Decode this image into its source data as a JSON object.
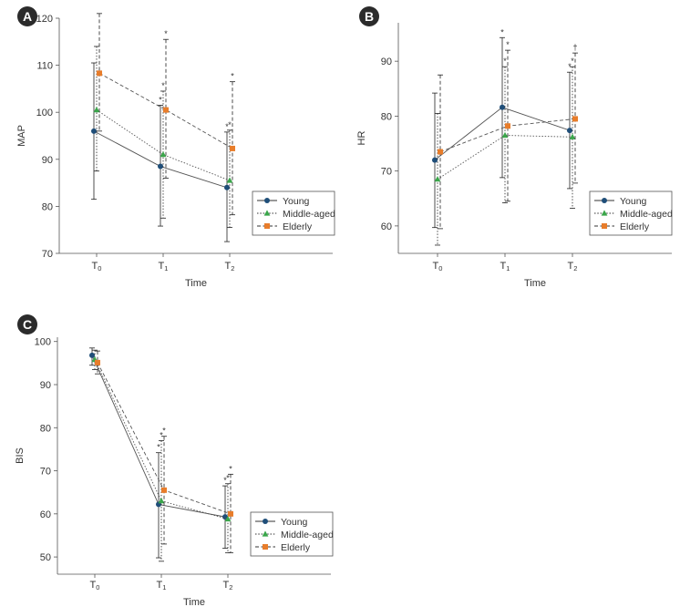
{
  "chart_data": [
    {
      "id": "A",
      "type": "line",
      "panel_label": "A",
      "xlabel": "Time",
      "ylabel": "MAP",
      "categories": [
        {
          "base": "T",
          "sub": "0"
        },
        {
          "base": "T",
          "sub": "1"
        },
        {
          "base": "T",
          "sub": "2"
        }
      ],
      "ylim": [
        70,
        120
      ],
      "yticks": [
        70,
        80,
        90,
        100,
        110,
        120
      ],
      "legend_position": "right",
      "series": [
        {
          "name": "Young",
          "marker": "circle",
          "dash": "solid",
          "color": "#1f4e79",
          "values": [
            96,
            88.5,
            84
          ],
          "upper": [
            110.5,
            101.5,
            95.8
          ],
          "lower": [
            81.5,
            75.8,
            72.5
          ],
          "star": [
            "",
            "*",
            "*"
          ]
        },
        {
          "name": "Middle-aged",
          "marker": "triangle",
          "dash": "dotted",
          "color": "#3aa64a",
          "values": [
            100.5,
            91,
            85.5
          ],
          "upper": [
            114,
            104.5,
            96.2
          ],
          "lower": [
            87.5,
            77.5,
            75.5
          ],
          "star": [
            "",
            "*",
            "*"
          ]
        },
        {
          "name": "Elderly",
          "marker": "square",
          "dash": "dashed",
          "color": "#e87d2b",
          "values": [
            108.3,
            100.5,
            92.3
          ],
          "upper": [
            121,
            115.5,
            106.5
          ],
          "lower": [
            96,
            86,
            78.2
          ],
          "star": [
            "",
            "*",
            "*"
          ]
        }
      ]
    },
    {
      "id": "B",
      "type": "line",
      "panel_label": "B",
      "xlabel": "Time",
      "ylabel": "HR",
      "categories": [
        {
          "base": "T",
          "sub": "0"
        },
        {
          "base": "T",
          "sub": "1"
        },
        {
          "base": "T",
          "sub": "2"
        }
      ],
      "ylim": [
        55,
        97
      ],
      "yticks": [
        60,
        70,
        80,
        90
      ],
      "legend_position": "right",
      "series": [
        {
          "name": "Young",
          "marker": "circle",
          "dash": "solid",
          "color": "#1f4e79",
          "values": [
            72,
            81.6,
            77.4
          ],
          "upper": [
            84.2,
            94.3,
            88
          ],
          "lower": [
            59.7,
            68.8,
            66.8
          ],
          "star": [
            "",
            "*",
            "*"
          ]
        },
        {
          "name": "Middle-aged",
          "marker": "triangle",
          "dash": "dotted",
          "color": "#3aa64a",
          "values": [
            68.5,
            76.5,
            76.2
          ],
          "upper": [
            80.5,
            89,
            89
          ],
          "lower": [
            56.5,
            64.2,
            63.2
          ],
          "star": [
            "",
            "*",
            "*"
          ]
        },
        {
          "name": "Elderly",
          "marker": "square",
          "dash": "dashed",
          "color": "#e87d2b",
          "values": [
            73.5,
            78.2,
            79.5
          ],
          "upper": [
            87.5,
            92,
            91.5
          ],
          "lower": [
            59.5,
            64.5,
            67.8
          ],
          "star": [
            "",
            "*",
            "†"
          ]
        }
      ]
    },
    {
      "id": "C",
      "type": "line",
      "panel_label": "C",
      "xlabel": "Time",
      "ylabel": "BIS",
      "categories": [
        {
          "base": "T",
          "sub": "0"
        },
        {
          "base": "T",
          "sub": "1"
        },
        {
          "base": "T",
          "sub": "2"
        }
      ],
      "ylim": [
        46,
        101
      ],
      "yticks": [
        50,
        60,
        70,
        80,
        90,
        100
      ],
      "legend_position": "right",
      "series": [
        {
          "name": "Young",
          "marker": "circle",
          "dash": "solid",
          "color": "#1f4e79",
          "values": [
            96.8,
            62.2,
            59.3
          ],
          "upper": [
            98.5,
            74.2,
            66.5
          ],
          "lower": [
            94.5,
            49.8,
            52
          ],
          "star": [
            "",
            "*",
            "*"
          ]
        },
        {
          "name": "Middle-aged",
          "marker": "triangle",
          "dash": "dotted",
          "color": "#3aa64a",
          "values": [
            95.8,
            63,
            58.8
          ],
          "upper": [
            98,
            77,
            67
          ],
          "lower": [
            93.5,
            49,
            51
          ],
          "star": [
            "",
            "*",
            "*"
          ]
        },
        {
          "name": "Elderly",
          "marker": "square",
          "dash": "dashed",
          "color": "#e87d2b",
          "values": [
            95.1,
            65.5,
            60
          ],
          "upper": [
            97.8,
            78,
            69.2
          ],
          "lower": [
            92.5,
            53,
            51
          ],
          "star": [
            "",
            "*",
            "*"
          ]
        }
      ]
    }
  ]
}
